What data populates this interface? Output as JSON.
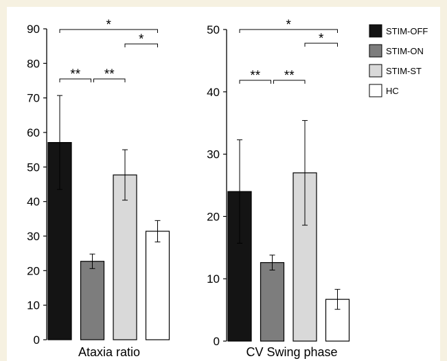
{
  "chart_data": [
    {
      "type": "bar",
      "xlabel": "Ataxia ratio",
      "ylim": [
        0,
        90
      ],
      "yticks": [
        0,
        10,
        20,
        30,
        40,
        50,
        60,
        70,
        80,
        90
      ],
      "categories": [
        "STIM-OFF",
        "STIM-ON",
        "STIM-ST",
        "HC"
      ],
      "values": [
        57.1,
        22.7,
        47.7,
        31.4
      ],
      "error": [
        13.6,
        2.1,
        7.3,
        3.1
      ],
      "significance": [
        {
          "from": "STIM-OFF",
          "to": "HC",
          "label": "*"
        },
        {
          "from": "STIM-ST",
          "to": "HC",
          "label": "*"
        },
        {
          "from": "STIM-OFF",
          "to": "STIM-ON",
          "label": "**"
        },
        {
          "from": "STIM-ON",
          "to": "STIM-ST",
          "label": "**"
        }
      ]
    },
    {
      "type": "bar",
      "xlabel": "CV Swing phase",
      "ylim": [
        0,
        50
      ],
      "yticks": [
        0,
        10,
        20,
        30,
        40,
        50
      ],
      "categories": [
        "STIM-OFF",
        "STIM-ON",
        "STIM-ST",
        "HC"
      ],
      "values": [
        24.0,
        12.6,
        27.0,
        6.7
      ],
      "error": [
        8.3,
        1.2,
        8.4,
        1.6
      ],
      "significance": [
        {
          "from": "STIM-OFF",
          "to": "HC",
          "label": "*"
        },
        {
          "from": "STIM-ST",
          "to": "HC",
          "label": "*"
        },
        {
          "from": "STIM-OFF",
          "to": "STIM-ON",
          "label": "**"
        },
        {
          "from": "STIM-ON",
          "to": "STIM-ST",
          "label": "**"
        }
      ]
    }
  ],
  "legend": {
    "placement": "top-right",
    "items": [
      {
        "label": "STIM-OFF",
        "color": "#141414"
      },
      {
        "label": "STIM-ON",
        "color": "#7d7d7d"
      },
      {
        "label": "STIM-ST",
        "color": "#d9d9d9"
      },
      {
        "label": "HC",
        "color": "#ffffff"
      }
    ]
  }
}
